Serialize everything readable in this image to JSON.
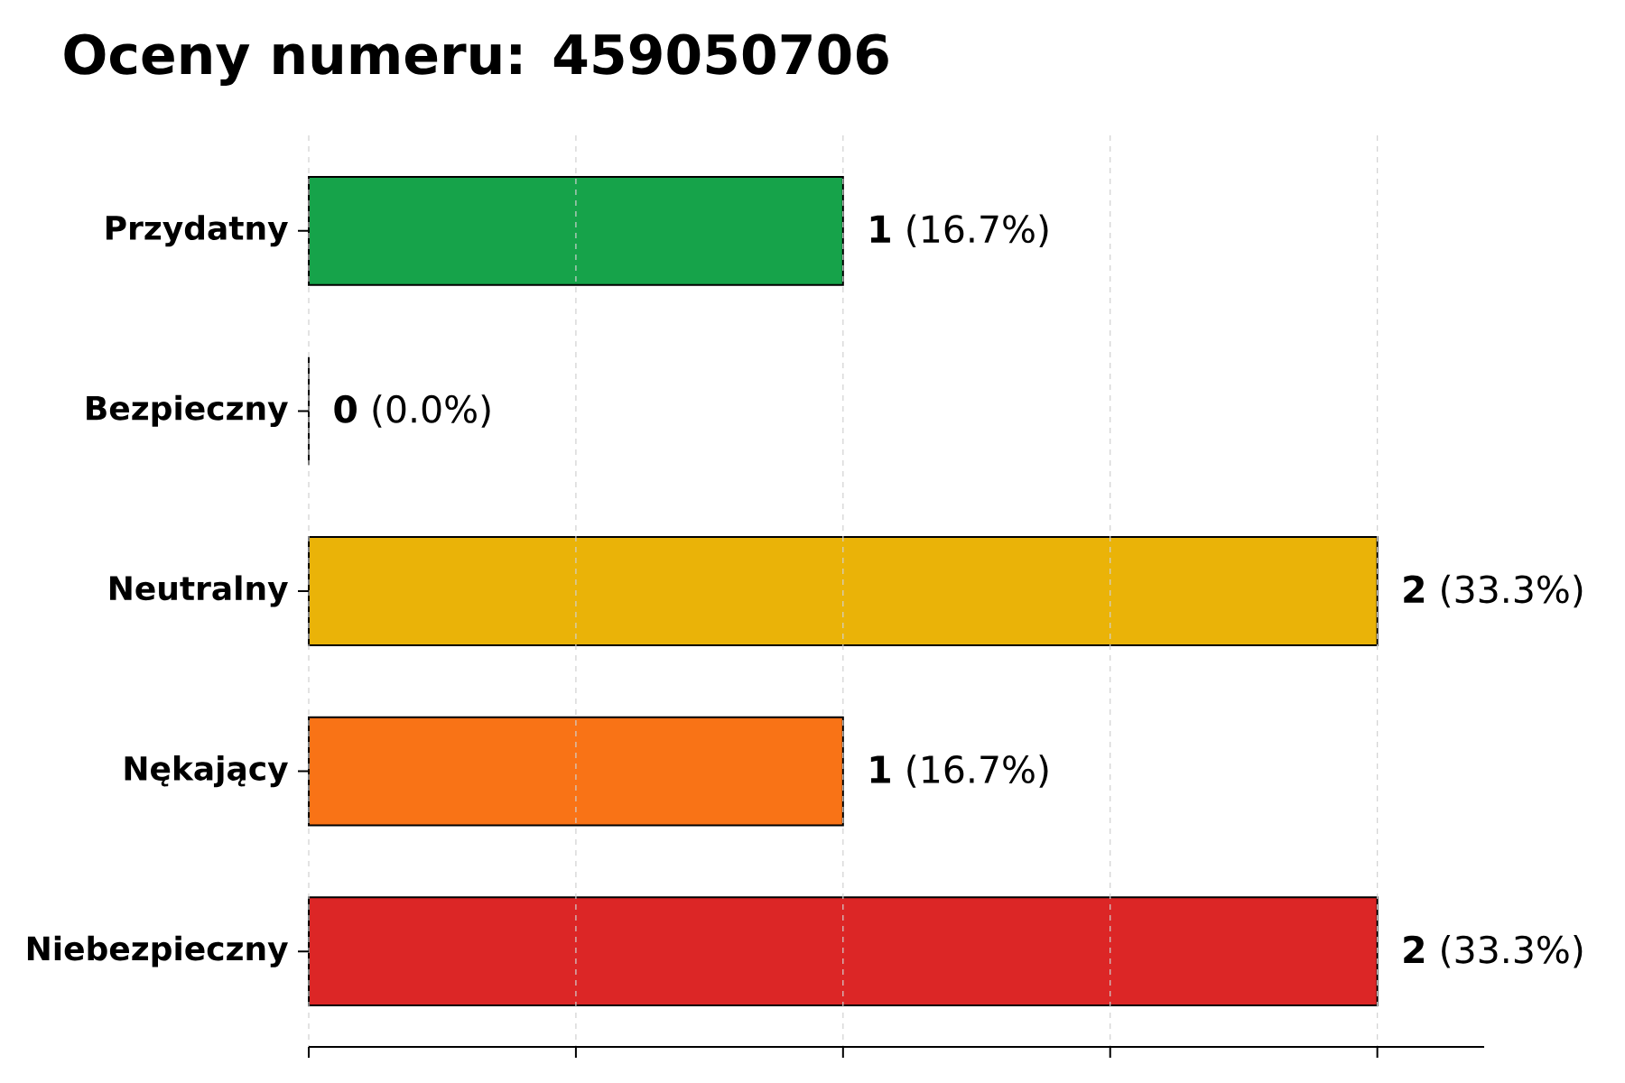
{
  "chart_data": {
    "type": "bar",
    "orientation": "horizontal",
    "title": "Oceny numeru: 459050706",
    "categories": [
      "Przydatny",
      "Bezpieczny",
      "Neutralny",
      "Nękający",
      "Niebezpieczny"
    ],
    "values": [
      1,
      0,
      2,
      1,
      2
    ],
    "colors": [
      "#16a34a",
      "#3b82f6",
      "#eab308",
      "#f97316",
      "#dc2626"
    ],
    "value_labels": [
      "**1** (16.7%)",
      "**0** (0.0%)",
      "**2** (33.3%)",
      "**1** (16.7%)",
      "**2** (33.3%)"
    ],
    "xlim": [
      0,
      2.2
    ],
    "xticks": [
      {
        "value": 0,
        "label": null
      },
      {
        "value": 0.5,
        "label": null
      },
      {
        "value": 1,
        "label": null
      },
      {
        "value": 1.5,
        "label": null
      },
      {
        "value": 2,
        "label": null
      }
    ],
    "grid": "x",
    "tick_labels": "y"
  }
}
